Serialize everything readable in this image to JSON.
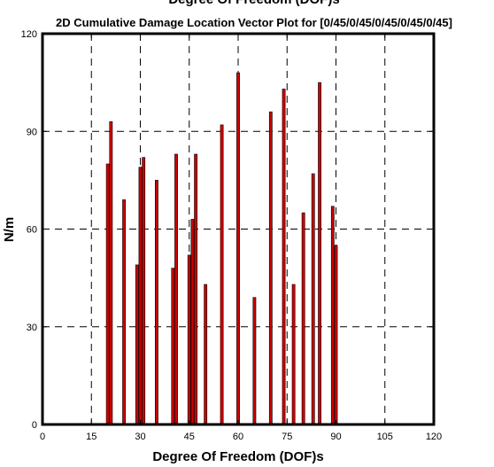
{
  "chart_data": {
    "type": "bar",
    "top_title": "Degree Of Freedom (DOF)s",
    "title": "2D Cumulative Damage Location Vector Plot for [0/45/0/45/0/45/0/45/0/45]",
    "xlabel": "Degree Of Freedom (DOF)s",
    "ylabel": "N/m",
    "xlim": [
      0,
      120
    ],
    "ylim": [
      0,
      120
    ],
    "xticks": [
      0,
      15,
      30,
      45,
      60,
      75,
      90,
      105,
      120
    ],
    "yticks": [
      0,
      30,
      60,
      90,
      120
    ],
    "xtick_labels": [
      "0",
      "15",
      "30",
      "45",
      "60",
      "75",
      "90",
      "105",
      "120"
    ],
    "ytick_labels": [
      "0",
      "30",
      "60",
      "90",
      "120"
    ],
    "grid": "dashed",
    "bar_color": "#cc0000",
    "points": [
      {
        "x": 20,
        "y": 80
      },
      {
        "x": 21,
        "y": 93
      },
      {
        "x": 25,
        "y": 69
      },
      {
        "x": 29,
        "y": 49
      },
      {
        "x": 30,
        "y": 79
      },
      {
        "x": 31,
        "y": 82
      },
      {
        "x": 35,
        "y": 75
      },
      {
        "x": 40,
        "y": 48
      },
      {
        "x": 41,
        "y": 83
      },
      {
        "x": 45,
        "y": 52
      },
      {
        "x": 46,
        "y": 63
      },
      {
        "x": 47,
        "y": 83
      },
      {
        "x": 50,
        "y": 43
      },
      {
        "x": 55,
        "y": 92
      },
      {
        "x": 60,
        "y": 108
      },
      {
        "x": 65,
        "y": 39
      },
      {
        "x": 70,
        "y": 96
      },
      {
        "x": 74,
        "y": 103
      },
      {
        "x": 77,
        "y": 43
      },
      {
        "x": 80,
        "y": 65
      },
      {
        "x": 83,
        "y": 77
      },
      {
        "x": 85,
        "y": 105
      },
      {
        "x": 89,
        "y": 67
      },
      {
        "x": 90,
        "y": 55
      }
    ]
  }
}
